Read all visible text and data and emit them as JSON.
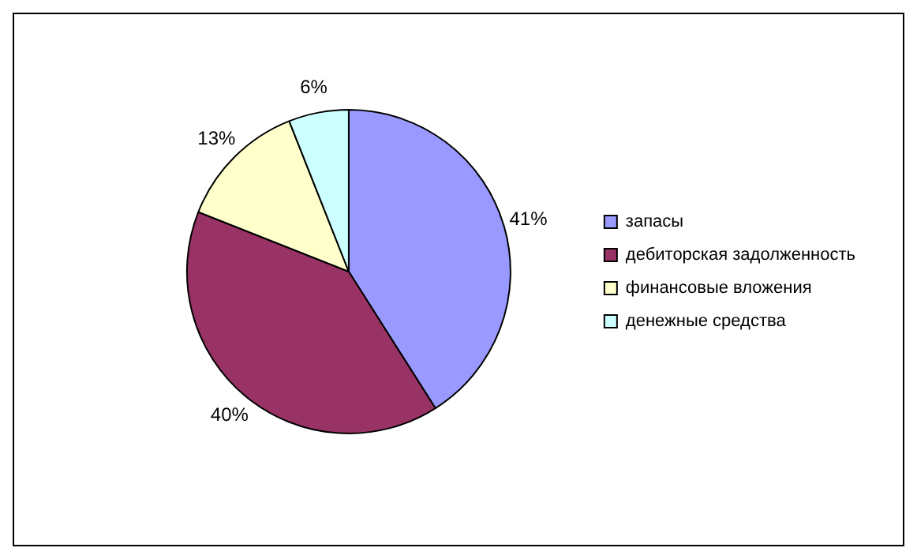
{
  "chart_data": {
    "type": "pie",
    "categories": [
      "запасы",
      "дебиторская задолженность",
      "финансовые вложения",
      "денежные средства"
    ],
    "values": [
      41,
      40,
      13,
      6
    ],
    "colors": [
      "#9999ff",
      "#993366",
      "#ffffcc",
      "#ccffff"
    ],
    "value_labels": [
      "41%",
      "40%",
      "13%",
      "6%"
    ],
    "legend": "right"
  }
}
